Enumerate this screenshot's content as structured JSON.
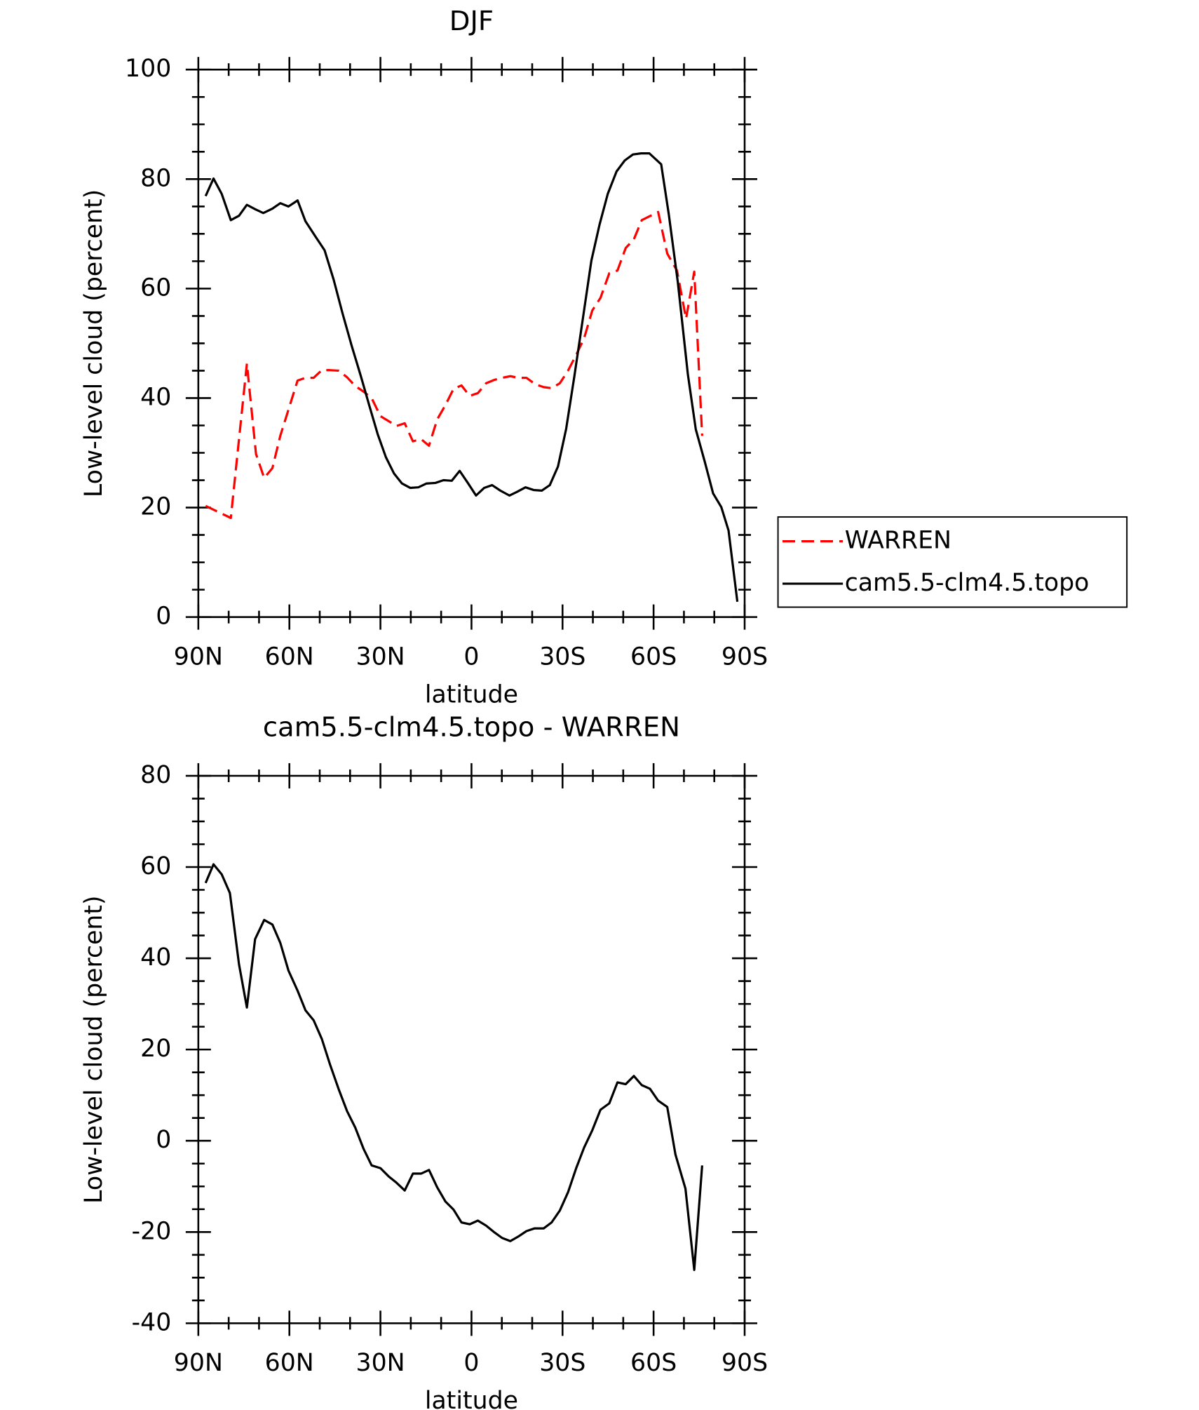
{
  "chart_data": [
    {
      "type": "line",
      "title": "DJF",
      "xlabel": "latitude",
      "ylabel": "Low-level cloud (percent)",
      "xlim": [
        90,
        -90
      ],
      "xticks": [
        {
          "value": 90,
          "label": "90N"
        },
        {
          "value": 60,
          "label": "60N"
        },
        {
          "value": 30,
          "label": "30N"
        },
        0,
        {
          "value": -30,
          "label": "30S"
        },
        {
          "value": -60,
          "label": "60S"
        },
        {
          "value": -90,
          "label": "90S"
        }
      ],
      "ylim": [
        0,
        100
      ],
      "yticks": [
        0,
        20,
        40,
        60,
        80,
        100
      ],
      "legend": "right",
      "series": [
        {
          "name": "WARREN",
          "color": "#ff0000",
          "dashed": true,
          "x": [
            87.6,
            79.3,
            74,
            71,
            68.3,
            65.6,
            63,
            57.3,
            54.7,
            52,
            49.3,
            46.6,
            43.7,
            41,
            38.3,
            35.6,
            32.9,
            30,
            24.7,
            22,
            19.3,
            16.6,
            14,
            11.3,
            8.6,
            5.9,
            3.3,
            0.6,
            -2.1,
            -4.8,
            -7.4,
            -10.1,
            -12.8,
            -15.4,
            -18.1,
            -21.1,
            -23.8,
            -26.4,
            -29.1,
            -31.8,
            -34.5,
            -37.1,
            -39.8,
            -42.5,
            -45.4,
            -48.1,
            -50.8,
            -53.5,
            -56.1,
            -61.5,
            -64.5,
            -67.7,
            -70.7,
            -73.4,
            -76
          ],
          "values": [
            20.3,
            18.1,
            46.3,
            29.8,
            25.4,
            27.2,
            33.1,
            43.2,
            43.7,
            43.7,
            45.1,
            45.1,
            45,
            43.8,
            42.2,
            41.2,
            40,
            36.7,
            34.9,
            35.4,
            32.1,
            32.5,
            31.3,
            36.1,
            38.7,
            41.7,
            42.3,
            40.4,
            40.9,
            42.7,
            43.3,
            43.7,
            44,
            43.7,
            43.7,
            42.5,
            42,
            41.8,
            42.7,
            45,
            47.9,
            50.9,
            56,
            58.3,
            62.8,
            63.3,
            67.4,
            69,
            72.5,
            74,
            66.4,
            63.3,
            54.5,
            63.1,
            33.1
          ]
        },
        {
          "name": "cam5.5-clm4.5.topo",
          "color": "#000000",
          "dashed": false,
          "x": [
            87.6,
            85,
            82.3,
            79.3,
            76.6,
            74,
            71.3,
            68.6,
            65.6,
            63,
            60.3,
            57.3,
            54.7,
            51.4,
            48.4,
            45.4,
            42.5,
            39.5,
            36.5,
            33.6,
            30.9,
            28.2,
            25.5,
            22.9,
            20.2,
            17.5,
            14.8,
            11.9,
            9.2,
            6.5,
            3.9,
            1.2,
            -1.5,
            -4.2,
            -6.8,
            -9.5,
            -12.5,
            -15.1,
            -17.8,
            -20.5,
            -23.2,
            -25.8,
            -28.5,
            -31.2,
            -33.9,
            -36.8,
            -39.5,
            -42.2,
            -44.9,
            -47.8,
            -50.5,
            -53.2,
            -55.9,
            -58.6,
            -62.5,
            -65,
            -68,
            -71.3,
            -73.9,
            -76.9,
            -79.6,
            -82.3,
            -84.7,
            -87.6
          ],
          "values": [
            76.9,
            80.1,
            77.3,
            72.5,
            73.3,
            75.3,
            74.5,
            73.8,
            74.6,
            75.6,
            75,
            76.1,
            72.3,
            69.5,
            67,
            61.6,
            55.5,
            49.6,
            44.1,
            38.5,
            33.4,
            29.2,
            26.2,
            24.4,
            23.6,
            23.7,
            24.4,
            24.5,
            25,
            24.9,
            26.7,
            24.5,
            22.2,
            23.6,
            24.1,
            23.1,
            22.2,
            22.9,
            23.7,
            23.2,
            23.1,
            24.1,
            27.5,
            34.4,
            44,
            54.9,
            65.1,
            71.7,
            77.3,
            81.4,
            83.4,
            84.5,
            84.7,
            84.7,
            82.7,
            73.6,
            61.1,
            44.3,
            34.3,
            28.3,
            22.6,
            20.1,
            15.8,
            2.8
          ]
        }
      ]
    },
    {
      "type": "line",
      "title": "cam5.5-clm4.5.topo - WARREN",
      "xlabel": "latitude",
      "ylabel": "Low-level cloud (percent)",
      "xlim": [
        90,
        -90
      ],
      "xticks": [
        {
          "value": 90,
          "label": "90N"
        },
        {
          "value": 60,
          "label": "60N"
        },
        {
          "value": 30,
          "label": "30N"
        },
        0,
        {
          "value": -30,
          "label": "30S"
        },
        {
          "value": -60,
          "label": "60S"
        },
        {
          "value": -90,
          "label": "90S"
        }
      ],
      "ylim": [
        -40,
        80
      ],
      "yticks": [
        -40,
        -20,
        0,
        20,
        40,
        60,
        80
      ],
      "series": [
        {
          "color": "#000000",
          "dashed": false,
          "x": [
            87.6,
            85,
            82.3,
            79.6,
            76.6,
            74,
            71.3,
            68.3,
            65.6,
            63,
            60.3,
            57.3,
            54.7,
            52,
            49.3,
            46.6,
            43.7,
            41,
            38.3,
            35.6,
            32.9,
            30,
            27.3,
            24.7,
            22,
            19.3,
            16.6,
            14,
            11.3,
            8.6,
            5.9,
            3.3,
            0.6,
            -2.1,
            -4.8,
            -7.4,
            -10.1,
            -12.8,
            -15.4,
            -18.1,
            -20.8,
            -23.8,
            -26.4,
            -29.1,
            -31.8,
            -34.5,
            -37.1,
            -39.8,
            -42.5,
            -45.4,
            -48.1,
            -50.8,
            -53.5,
            -56.1,
            -58.8,
            -61.5,
            -64.5,
            -67.2,
            -70.5,
            -73.4,
            -76
          ],
          "values": [
            56.5,
            60.6,
            58.4,
            54.3,
            38.7,
            29.2,
            44.2,
            48.4,
            47.4,
            43.4,
            37.3,
            32.9,
            28.6,
            26.4,
            22.3,
            16.7,
            11.2,
            6.5,
            2.9,
            -1.7,
            -5.4,
            -6,
            -7.8,
            -9.2,
            -10.9,
            -7.2,
            -7.2,
            -6.4,
            -10.2,
            -13.3,
            -15.1,
            -17.9,
            -18.3,
            -17.5,
            -18.6,
            -20,
            -21.3,
            -22,
            -21,
            -19.8,
            -19.2,
            -19.2,
            -17.9,
            -15.3,
            -11.3,
            -6,
            -1.5,
            2.3,
            6.8,
            8.2,
            12.8,
            12.4,
            14.2,
            12.2,
            11.4,
            8.8,
            7.4,
            -3,
            -10.5,
            -28.3,
            -5.4
          ]
        }
      ]
    }
  ]
}
